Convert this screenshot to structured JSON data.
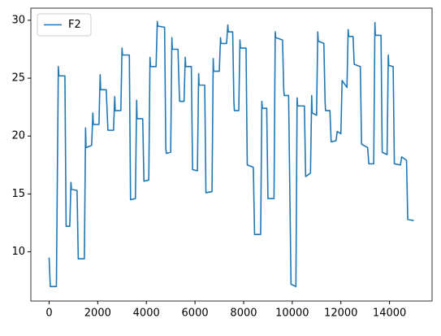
{
  "chart_data": {
    "type": "line",
    "x": [
      0,
      50,
      300,
      380,
      400,
      650,
      700,
      850,
      900,
      920,
      1150,
      1200,
      1450,
      1500,
      1520,
      1750,
      1800,
      1820,
      2050,
      2100,
      2120,
      2350,
      2400,
      2420,
      2650,
      2700,
      2720,
      2950,
      3000,
      3020,
      3300,
      3350,
      3550,
      3600,
      3620,
      3850,
      3900,
      4100,
      4150,
      4170,
      4400,
      4450,
      4470,
      4750,
      4800,
      4820,
      5000,
      5050,
      5070,
      5300,
      5350,
      5370,
      5550,
      5600,
      5620,
      5850,
      5900,
      6100,
      6150,
      6170,
      6400,
      6450,
      6700,
      6750,
      6770,
      7000,
      7050,
      7070,
      7300,
      7350,
      7370,
      7550,
      7600,
      7620,
      7800,
      7850,
      7870,
      8100,
      8150,
      8400,
      8450,
      8700,
      8750,
      8770,
      8950,
      9000,
      9250,
      9300,
      9320,
      9600,
      9650,
      9670,
      9850,
      9950,
      10150,
      10200,
      10220,
      10500,
      10550,
      10750,
      10800,
      10820,
      11000,
      11050,
      11070,
      11300,
      11350,
      11370,
      11550,
      11600,
      11800,
      11850,
      12000,
      12050,
      12250,
      12300,
      12320,
      12500,
      12550,
      12800,
      12850,
      13100,
      13150,
      13350,
      13400,
      13420,
      13650,
      13700,
      13900,
      13950,
      13970,
      14150,
      14200,
      14450,
      14500,
      14700,
      14750,
      14999
    ],
    "series": [
      {
        "name": "F2",
        "color": "#1f77b4",
        "values": [
          9.5,
          7,
          7,
          26,
          25.2,
          25.2,
          12.2,
          12.2,
          16,
          15.4,
          15.3,
          9.4,
          9.4,
          20.7,
          19,
          19.2,
          22,
          21,
          21,
          25.3,
          24,
          24,
          21.5,
          20.5,
          20.5,
          23.4,
          22.2,
          22.2,
          27.6,
          27,
          27,
          14.5,
          14.6,
          23.1,
          21.5,
          21.5,
          16.1,
          16.2,
          26.8,
          26,
          26,
          29.9,
          29.5,
          29.4,
          19,
          18.5,
          18.6,
          28.5,
          27.5,
          27.5,
          24,
          23,
          23,
          26.8,
          26,
          26,
          17.1,
          17,
          25.4,
          24.4,
          24.4,
          15.1,
          15.2,
          26.7,
          25.6,
          25.6,
          28.5,
          28,
          28,
          29.6,
          29,
          29,
          23,
          22.2,
          22.2,
          28.3,
          27.6,
          27.6,
          17.5,
          17.3,
          11.5,
          11.5,
          23,
          22.4,
          22.4,
          14.6,
          14.6,
          29,
          28.5,
          28.3,
          24,
          23.5,
          23.5,
          7.2,
          7,
          23.3,
          22.6,
          22.6,
          16.5,
          16.8,
          23.5,
          22,
          21.8,
          29,
          28.2,
          28,
          23,
          22.2,
          22.2,
          19.5,
          19.6,
          20.4,
          20.2,
          24.8,
          24.2,
          29.2,
          28.6,
          28.6,
          26.2,
          26,
          19.3,
          19,
          17.6,
          17.6,
          29.8,
          28.7,
          28.7,
          18.6,
          18.4,
          27,
          26.1,
          26,
          17.6,
          17.5,
          18.2,
          17.9,
          12.8,
          12.7
        ]
      }
    ],
    "xlim": [
      -750,
      15750
    ],
    "xticks": [
      0,
      2000,
      4000,
      6000,
      8000,
      10000,
      12000,
      14000
    ],
    "ylim": [
      5.75,
      31.05
    ],
    "yticks": [
      10,
      15,
      20,
      25,
      30
    ],
    "legend": "upper left"
  }
}
